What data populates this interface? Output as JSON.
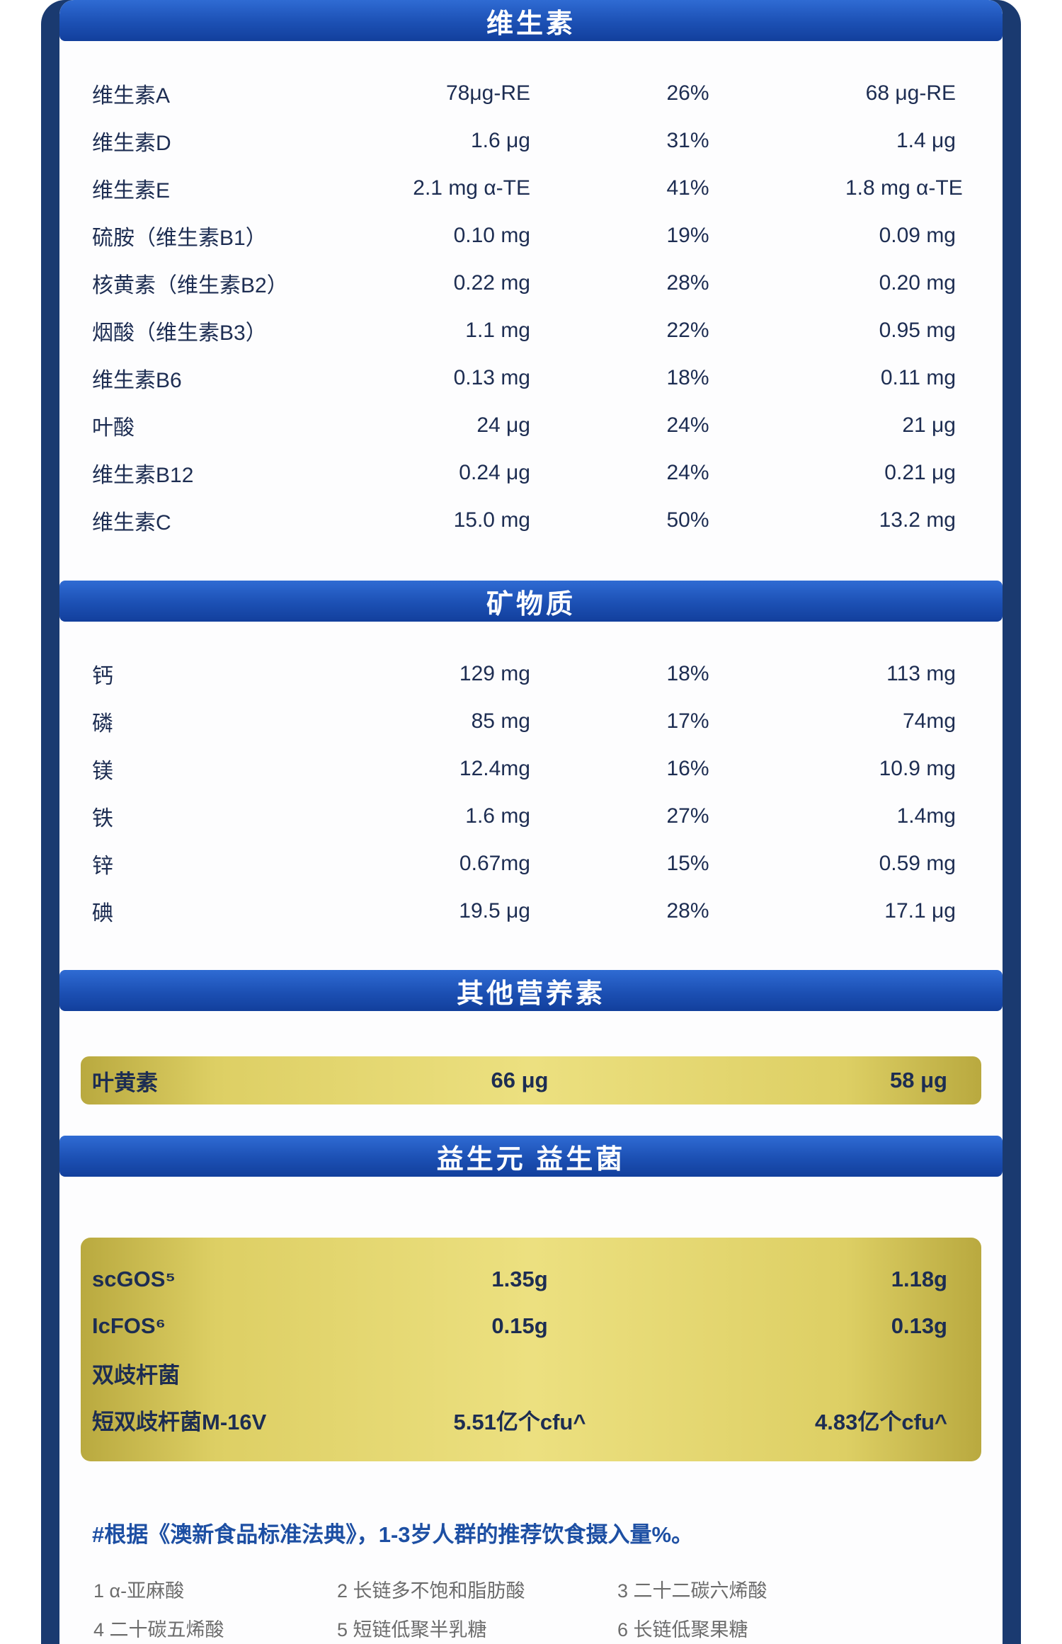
{
  "colors": {
    "frame_navy": "#1a3a70",
    "header_blue_top": "#2f6bd3",
    "header_blue_bottom": "#123f9c",
    "body_text": "#1d2d52",
    "gold_edge": "#b9a93f",
    "gold_center": "#ece080",
    "note_blue": "#1d4fa3",
    "footnote_gray": "#6c6c6c"
  },
  "sections": {
    "vitamins": {
      "title": "维生素",
      "rows": [
        {
          "name": "维生素A",
          "value": "78μg-RE",
          "percent": "26%",
          "value2": "68 μg-RE"
        },
        {
          "name": "维生素D",
          "value": "1.6 μg",
          "percent": "31%",
          "value2": "1.4 μg"
        },
        {
          "name": "维生素E",
          "value": "2.1 mg α-TE",
          "percent": "41%",
          "value2": "1.8 mg α-TE"
        },
        {
          "name": "硫胺（维生素B1）",
          "value": "0.10 mg",
          "percent": "19%",
          "value2": "0.09 mg"
        },
        {
          "name": "核黄素（维生素B2）",
          "value": "0.22 mg",
          "percent": "28%",
          "value2": "0.20 mg"
        },
        {
          "name": "烟酸（维生素B3）",
          "value": "1.1 mg",
          "percent": "22%",
          "value2": "0.95 mg"
        },
        {
          "name": "维生素B6",
          "value": "0.13 mg",
          "percent": "18%",
          "value2": "0.11 mg"
        },
        {
          "name": "叶酸",
          "value": "24 μg",
          "percent": "24%",
          "value2": "21 μg"
        },
        {
          "name": "维生素B12",
          "value": "0.24 μg",
          "percent": "24%",
          "value2": "0.21 μg"
        },
        {
          "name": "维生素C",
          "value": "15.0 mg",
          "percent": "50%",
          "value2": "13.2 mg"
        }
      ]
    },
    "minerals": {
      "title": "矿物质",
      "rows": [
        {
          "name": "钙",
          "value": "129 mg",
          "percent": "18%",
          "value2": "113 mg"
        },
        {
          "name": "磷",
          "value": "85 mg",
          "percent": "17%",
          "value2": "74mg"
        },
        {
          "name": "镁",
          "value": "12.4mg",
          "percent": "16%",
          "value2": "10.9 mg"
        },
        {
          "name": "铁",
          "value": "1.6 mg",
          "percent": "27%",
          "value2": "1.4mg"
        },
        {
          "name": "锌",
          "value": "0.67mg",
          "percent": "15%",
          "value2": "0.59 mg"
        },
        {
          "name": "碘",
          "value": "19.5 μg",
          "percent": "28%",
          "value2": "17.1 μg"
        }
      ]
    },
    "other": {
      "title": "其他营养素",
      "rows": [
        {
          "name": "叶黄素",
          "value": "66 μg",
          "value2": "58 μg"
        }
      ]
    },
    "probiotics": {
      "title": "益生元 益生菌",
      "rows": [
        {
          "name": "scGOS⁵",
          "value": "1.35g",
          "value2": "1.18g"
        },
        {
          "name": "IcFOS⁶",
          "value": "0.15g",
          "value2": "0.13g"
        },
        {
          "name": "双歧杆菌",
          "value": "",
          "value2": ""
        },
        {
          "name": "短双歧杆菌M-16V",
          "value": "5.51亿个cfu^",
          "value2": "4.83亿个cfu^"
        }
      ]
    }
  },
  "note": "#根据《澳新食品标准法典》，1-3岁人群的推荐饮食摄入量%。",
  "footnotes": [
    "1 α-亚麻酸",
    "2 长链多不饱和脂肪酸",
    "3 二十二碳六烯酸",
    "4 二十碳五烯酸",
    "5 短链低聚半乳糖",
    "6 长链低聚果糖"
  ]
}
